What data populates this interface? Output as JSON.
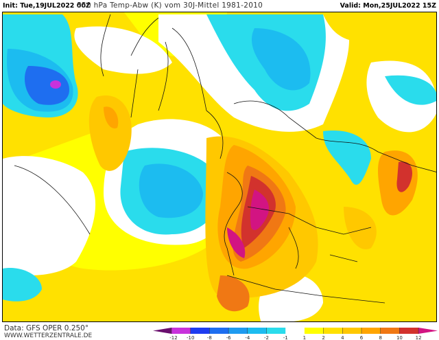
{
  "header": {
    "init": "Init: Tue,19JUL2022 00Z",
    "title": "850 hPa Temp-Abw (K) vom 30J-Mittel 1981-2010",
    "valid": "Valid: Mon,25JUL2022 15Z"
  },
  "footer": {
    "data_source": "Data: GFS OPER 0.250°",
    "website": "WWW.WETTERZENTRALE.DE"
  },
  "legend": {
    "unit": "K",
    "ticks": [
      "-12",
      "-10",
      "-8",
      "-6",
      "-4",
      "-2",
      "-1",
      "1",
      "2",
      "4",
      "6",
      "8",
      "10",
      "12"
    ],
    "colors": {
      "below_-12": "#6a0f6e",
      "-12_-10": "#c832dc",
      "-10_-8": "#1e3cf0",
      "-8_-6": "#1e6ef0",
      "-6_-4": "#1e9bf0",
      "-4_-2": "#1cbcf0",
      "-2_-1": "#2adcec",
      "-1_1": "#ffffff",
      "1_2": "#ffff00",
      "2_4": "#ffe100",
      "4_6": "#ffc800",
      "6_8": "#ffa500",
      "8_10": "#f07814",
      "10_12": "#d2322d",
      "above_12": "#d21482"
    }
  }
}
